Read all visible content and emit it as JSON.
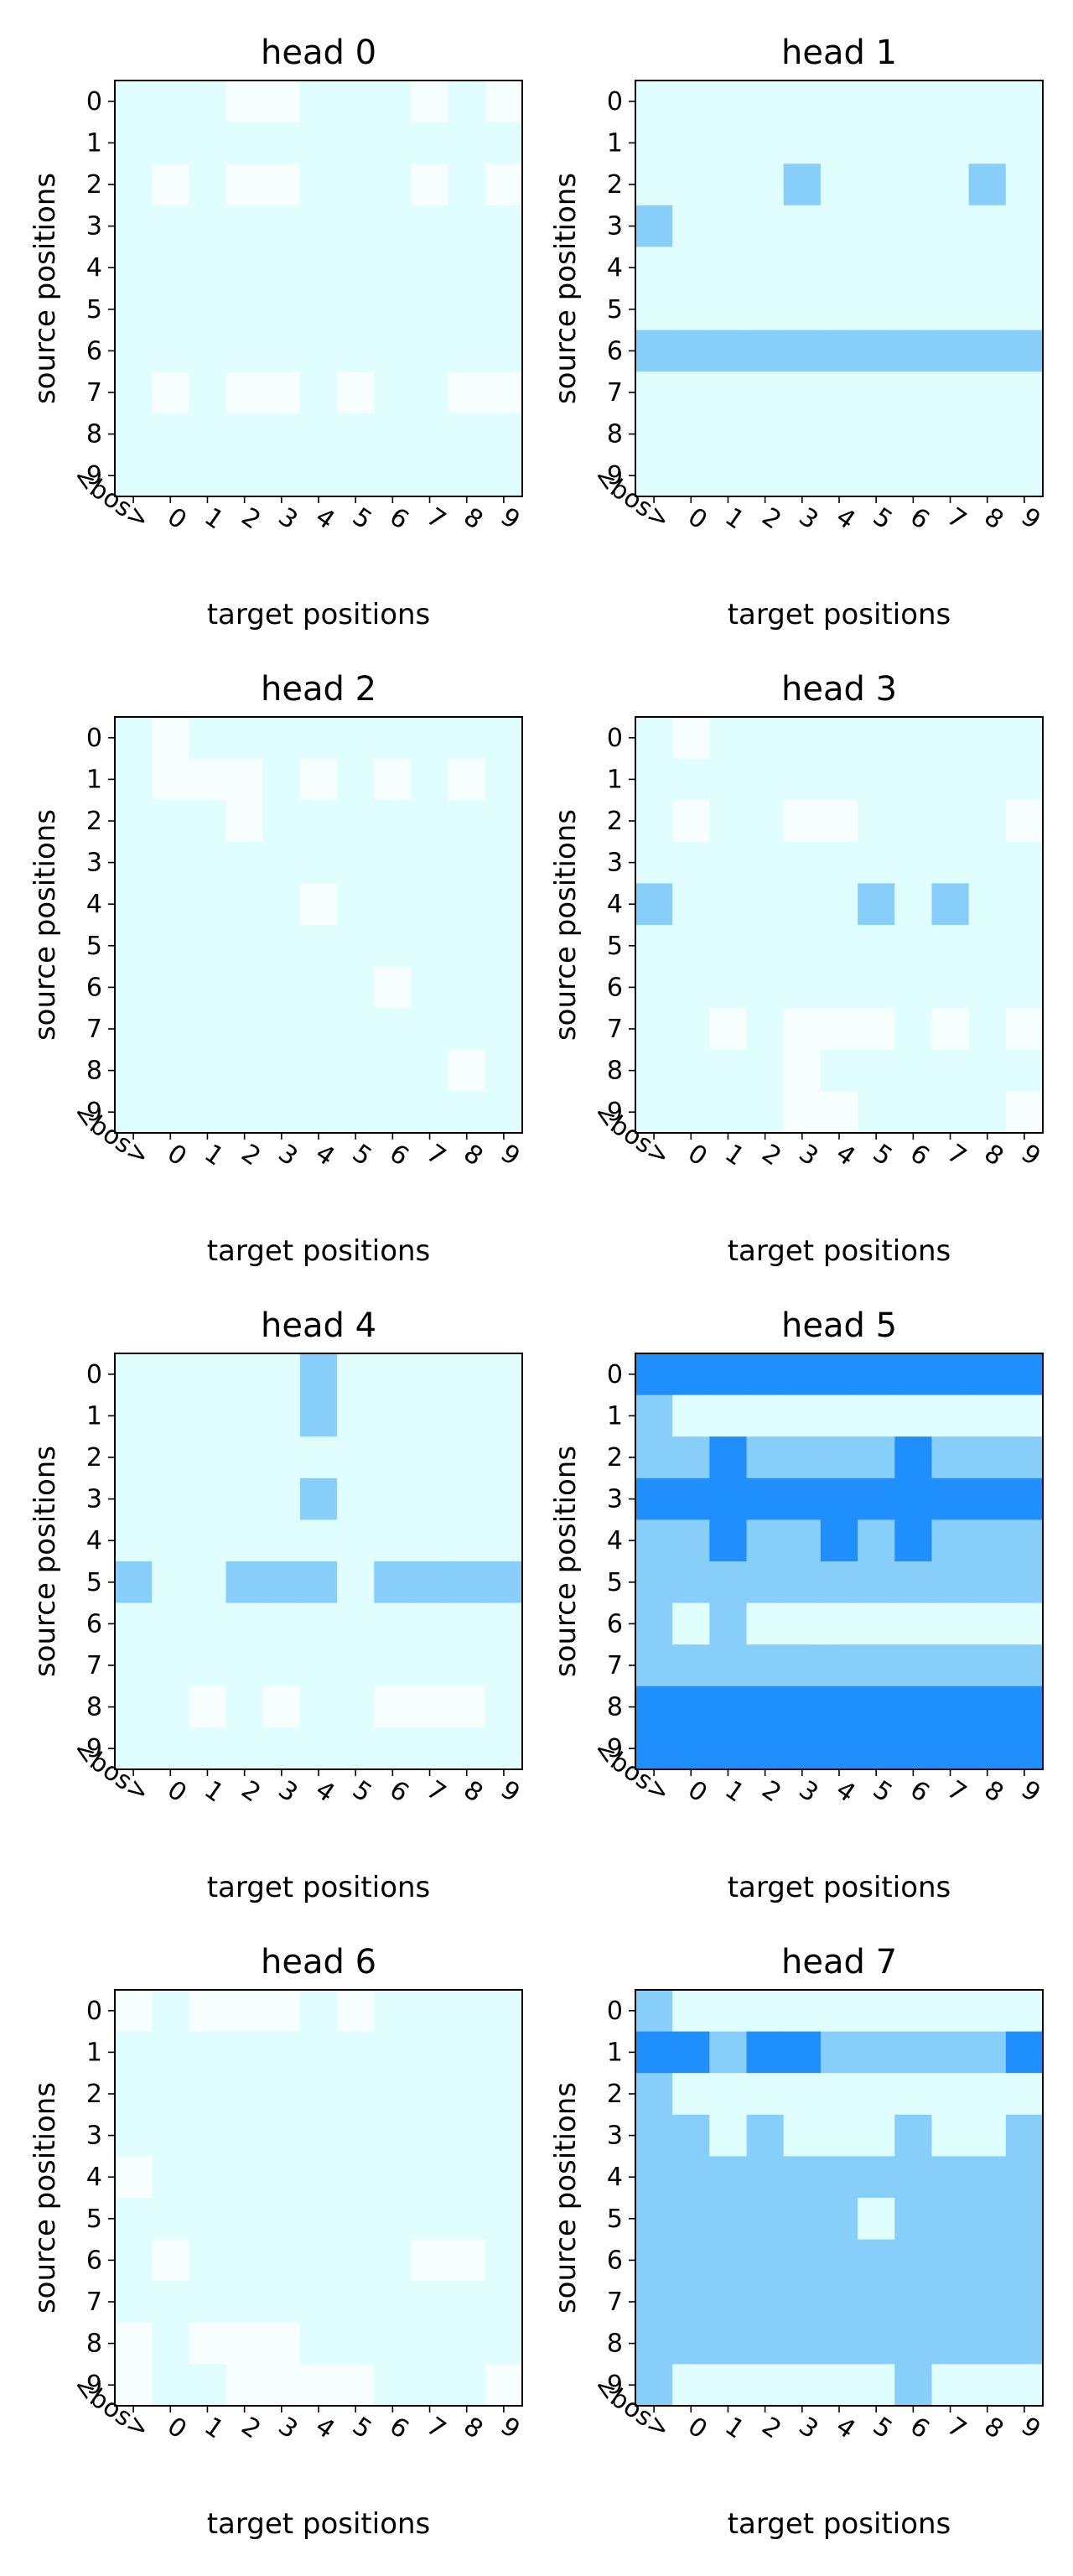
{
  "figure": {
    "background": "#ffffff",
    "levels": {
      "0": "#f6fefe",
      "1": "#e0fefe",
      "2": "#87cefa",
      "3": "#1f8ffe"
    }
  },
  "chart_data": [
    {
      "type": "heatmap",
      "title": "head 0",
      "xlabel": "target positions",
      "ylabel": "source positions",
      "x_ticks": [
        "<bos>",
        "0",
        "1",
        "2",
        "3",
        "4",
        "5",
        "6",
        "7",
        "8",
        "9"
      ],
      "y_ticks": [
        "0",
        "1",
        "2",
        "3",
        "4",
        "5",
        "6",
        "7",
        "8",
        "9"
      ],
      "grid": false,
      "values": [
        [
          1,
          1,
          1,
          0,
          0,
          1,
          1,
          1,
          0,
          1,
          0
        ],
        [
          1,
          1,
          1,
          1,
          1,
          1,
          1,
          1,
          1,
          1,
          1
        ],
        [
          1,
          0,
          1,
          0,
          0,
          1,
          1,
          1,
          0,
          1,
          0
        ],
        [
          1,
          1,
          1,
          1,
          1,
          1,
          1,
          1,
          1,
          1,
          1
        ],
        [
          1,
          1,
          1,
          1,
          1,
          1,
          1,
          1,
          1,
          1,
          1
        ],
        [
          1,
          1,
          1,
          1,
          1,
          1,
          1,
          1,
          1,
          1,
          1
        ],
        [
          1,
          1,
          1,
          1,
          1,
          1,
          1,
          1,
          1,
          1,
          1
        ],
        [
          1,
          0,
          1,
          0,
          0,
          1,
          0,
          1,
          1,
          0,
          0
        ],
        [
          1,
          1,
          1,
          1,
          1,
          1,
          1,
          1,
          1,
          1,
          1
        ],
        [
          1,
          1,
          1,
          1,
          1,
          1,
          1,
          1,
          1,
          1,
          1
        ]
      ]
    },
    {
      "type": "heatmap",
      "title": "head 1",
      "xlabel": "target positions",
      "ylabel": "source positions",
      "x_ticks": [
        "<bos>",
        "0",
        "1",
        "2",
        "3",
        "4",
        "5",
        "6",
        "7",
        "8",
        "9"
      ],
      "y_ticks": [
        "0",
        "1",
        "2",
        "3",
        "4",
        "5",
        "6",
        "7",
        "8",
        "9"
      ],
      "grid": false,
      "values": [
        [
          1,
          1,
          1,
          1,
          1,
          1,
          1,
          1,
          1,
          1,
          1
        ],
        [
          1,
          1,
          1,
          1,
          1,
          1,
          1,
          1,
          1,
          1,
          1
        ],
        [
          1,
          1,
          1,
          1,
          2,
          1,
          1,
          1,
          1,
          2,
          1
        ],
        [
          2,
          1,
          1,
          1,
          1,
          1,
          1,
          1,
          1,
          1,
          1
        ],
        [
          1,
          1,
          1,
          1,
          1,
          1,
          1,
          1,
          1,
          1,
          1
        ],
        [
          1,
          1,
          1,
          1,
          1,
          1,
          1,
          1,
          1,
          1,
          1
        ],
        [
          2,
          2,
          2,
          2,
          2,
          2,
          2,
          2,
          2,
          2,
          2
        ],
        [
          1,
          1,
          1,
          1,
          1,
          1,
          1,
          1,
          1,
          1,
          1
        ],
        [
          1,
          1,
          1,
          1,
          1,
          1,
          1,
          1,
          1,
          1,
          1
        ],
        [
          1,
          1,
          1,
          1,
          1,
          1,
          1,
          1,
          1,
          1,
          1
        ]
      ]
    },
    {
      "type": "heatmap",
      "title": "head 2",
      "xlabel": "target positions",
      "ylabel": "source positions",
      "x_ticks": [
        "<bos>",
        "0",
        "1",
        "2",
        "3",
        "4",
        "5",
        "6",
        "7",
        "8",
        "9"
      ],
      "y_ticks": [
        "0",
        "1",
        "2",
        "3",
        "4",
        "5",
        "6",
        "7",
        "8",
        "9"
      ],
      "grid": false,
      "values": [
        [
          1,
          0,
          1,
          1,
          1,
          1,
          1,
          1,
          1,
          1,
          1
        ],
        [
          1,
          0,
          0,
          0,
          1,
          0,
          1,
          0,
          1,
          0,
          1
        ],
        [
          1,
          1,
          1,
          0,
          1,
          1,
          1,
          1,
          1,
          1,
          1
        ],
        [
          1,
          1,
          1,
          1,
          1,
          1,
          1,
          1,
          1,
          1,
          1
        ],
        [
          1,
          1,
          1,
          1,
          1,
          0,
          1,
          1,
          1,
          1,
          1
        ],
        [
          1,
          1,
          1,
          1,
          1,
          1,
          1,
          1,
          1,
          1,
          1
        ],
        [
          1,
          1,
          1,
          1,
          1,
          1,
          1,
          0,
          1,
          1,
          1
        ],
        [
          1,
          1,
          1,
          1,
          1,
          1,
          1,
          1,
          1,
          1,
          1
        ],
        [
          1,
          1,
          1,
          1,
          1,
          1,
          1,
          1,
          1,
          0,
          1
        ],
        [
          1,
          1,
          1,
          1,
          1,
          1,
          1,
          1,
          1,
          1,
          1
        ]
      ]
    },
    {
      "type": "heatmap",
      "title": "head 3",
      "xlabel": "target positions",
      "ylabel": "source positions",
      "x_ticks": [
        "<bos>",
        "0",
        "1",
        "2",
        "3",
        "4",
        "5",
        "6",
        "7",
        "8",
        "9"
      ],
      "y_ticks": [
        "0",
        "1",
        "2",
        "3",
        "4",
        "5",
        "6",
        "7",
        "8",
        "9"
      ],
      "grid": false,
      "values": [
        [
          1,
          0,
          1,
          1,
          1,
          1,
          1,
          1,
          1,
          1,
          1
        ],
        [
          1,
          1,
          1,
          1,
          1,
          1,
          1,
          1,
          1,
          1,
          1
        ],
        [
          1,
          0,
          1,
          1,
          0,
          0,
          1,
          1,
          1,
          1,
          0
        ],
        [
          1,
          1,
          1,
          1,
          1,
          1,
          1,
          1,
          1,
          1,
          1
        ],
        [
          2,
          1,
          1,
          1,
          1,
          1,
          2,
          1,
          2,
          1,
          1
        ],
        [
          1,
          1,
          1,
          1,
          1,
          1,
          1,
          1,
          1,
          1,
          1
        ],
        [
          1,
          1,
          1,
          1,
          1,
          1,
          1,
          1,
          1,
          1,
          1
        ],
        [
          1,
          1,
          0,
          1,
          0,
          0,
          0,
          1,
          0,
          1,
          0
        ],
        [
          1,
          1,
          1,
          1,
          0,
          1,
          1,
          1,
          1,
          1,
          1
        ],
        [
          1,
          1,
          1,
          1,
          0,
          0,
          1,
          1,
          1,
          1,
          0
        ]
      ]
    },
    {
      "type": "heatmap",
      "title": "head 4",
      "xlabel": "target positions",
      "ylabel": "source positions",
      "x_ticks": [
        "<bos>",
        "0",
        "1",
        "2",
        "3",
        "4",
        "5",
        "6",
        "7",
        "8",
        "9"
      ],
      "y_ticks": [
        "0",
        "1",
        "2",
        "3",
        "4",
        "5",
        "6",
        "7",
        "8",
        "9"
      ],
      "grid": false,
      "values": [
        [
          1,
          1,
          1,
          1,
          1,
          2,
          1,
          1,
          1,
          1,
          1
        ],
        [
          1,
          1,
          1,
          1,
          1,
          2,
          1,
          1,
          1,
          1,
          1
        ],
        [
          1,
          1,
          1,
          1,
          1,
          1,
          1,
          1,
          1,
          1,
          1
        ],
        [
          1,
          1,
          1,
          1,
          1,
          2,
          1,
          1,
          1,
          1,
          1
        ],
        [
          1,
          1,
          1,
          1,
          1,
          1,
          1,
          1,
          1,
          1,
          1
        ],
        [
          2,
          1,
          1,
          2,
          2,
          2,
          1,
          2,
          2,
          2,
          2
        ],
        [
          1,
          1,
          1,
          1,
          1,
          1,
          1,
          1,
          1,
          1,
          1
        ],
        [
          1,
          1,
          1,
          1,
          1,
          1,
          1,
          1,
          1,
          1,
          1
        ],
        [
          1,
          1,
          0,
          1,
          0,
          1,
          1,
          0,
          0,
          0,
          1
        ],
        [
          1,
          1,
          1,
          1,
          1,
          1,
          1,
          1,
          1,
          1,
          1
        ]
      ]
    },
    {
      "type": "heatmap",
      "title": "head 5",
      "xlabel": "target positions",
      "ylabel": "source positions",
      "x_ticks": [
        "<bos>",
        "0",
        "1",
        "2",
        "3",
        "4",
        "5",
        "6",
        "7",
        "8",
        "9"
      ],
      "y_ticks": [
        "0",
        "1",
        "2",
        "3",
        "4",
        "5",
        "6",
        "7",
        "8",
        "9"
      ],
      "grid": false,
      "values": [
        [
          3,
          3,
          3,
          3,
          3,
          3,
          3,
          3,
          3,
          3,
          3
        ],
        [
          2,
          1,
          1,
          1,
          1,
          1,
          1,
          1,
          1,
          1,
          1
        ],
        [
          2,
          2,
          3,
          2,
          2,
          2,
          2,
          3,
          2,
          2,
          2
        ],
        [
          3,
          3,
          3,
          3,
          3,
          3,
          3,
          3,
          3,
          3,
          3
        ],
        [
          2,
          2,
          3,
          2,
          2,
          3,
          2,
          3,
          2,
          2,
          2
        ],
        [
          2,
          2,
          2,
          2,
          2,
          2,
          2,
          2,
          2,
          2,
          2
        ],
        [
          2,
          1,
          2,
          1,
          1,
          1,
          1,
          1,
          1,
          1,
          1
        ],
        [
          2,
          2,
          2,
          2,
          2,
          2,
          2,
          2,
          2,
          2,
          2
        ],
        [
          3,
          3,
          3,
          3,
          3,
          3,
          3,
          3,
          3,
          3,
          3
        ],
        [
          3,
          3,
          3,
          3,
          3,
          3,
          3,
          3,
          3,
          3,
          3
        ]
      ]
    },
    {
      "type": "heatmap",
      "title": "head 6",
      "xlabel": "target positions",
      "ylabel": "source positions",
      "x_ticks": [
        "<bos>",
        "0",
        "1",
        "2",
        "3",
        "4",
        "5",
        "6",
        "7",
        "8",
        "9"
      ],
      "y_ticks": [
        "0",
        "1",
        "2",
        "3",
        "4",
        "5",
        "6",
        "7",
        "8",
        "9"
      ],
      "grid": false,
      "values": [
        [
          0,
          1,
          0,
          0,
          0,
          1,
          0,
          1,
          1,
          1,
          1
        ],
        [
          1,
          1,
          1,
          1,
          1,
          1,
          1,
          1,
          1,
          1,
          1
        ],
        [
          1,
          1,
          1,
          1,
          1,
          1,
          1,
          1,
          1,
          1,
          1
        ],
        [
          1,
          1,
          1,
          1,
          1,
          1,
          1,
          1,
          1,
          1,
          1
        ],
        [
          0,
          1,
          1,
          1,
          1,
          1,
          1,
          1,
          1,
          1,
          1
        ],
        [
          1,
          1,
          1,
          1,
          1,
          1,
          1,
          1,
          1,
          1,
          1
        ],
        [
          1,
          0,
          1,
          1,
          1,
          1,
          1,
          1,
          0,
          0,
          1
        ],
        [
          1,
          1,
          1,
          1,
          1,
          1,
          1,
          1,
          1,
          1,
          1
        ],
        [
          0,
          1,
          0,
          0,
          0,
          1,
          1,
          1,
          1,
          1,
          1
        ],
        [
          0,
          1,
          1,
          0,
          0,
          0,
          0,
          1,
          1,
          1,
          0
        ]
      ]
    },
    {
      "type": "heatmap",
      "title": "head 7",
      "xlabel": "target positions",
      "ylabel": "source positions",
      "x_ticks": [
        "<bos>",
        "0",
        "1",
        "2",
        "3",
        "4",
        "5",
        "6",
        "7",
        "8",
        "9"
      ],
      "y_ticks": [
        "0",
        "1",
        "2",
        "3",
        "4",
        "5",
        "6",
        "7",
        "8",
        "9"
      ],
      "grid": false,
      "values": [
        [
          2,
          1,
          1,
          1,
          1,
          1,
          1,
          1,
          1,
          1,
          1
        ],
        [
          3,
          3,
          2,
          3,
          3,
          2,
          2,
          2,
          2,
          2,
          3
        ],
        [
          2,
          1,
          1,
          1,
          1,
          1,
          1,
          1,
          1,
          1,
          1
        ],
        [
          2,
          2,
          1,
          2,
          1,
          1,
          1,
          2,
          1,
          1,
          2
        ],
        [
          2,
          2,
          2,
          2,
          2,
          2,
          2,
          2,
          2,
          2,
          2
        ],
        [
          2,
          2,
          2,
          2,
          2,
          2,
          1,
          2,
          2,
          2,
          2
        ],
        [
          2,
          2,
          2,
          2,
          2,
          2,
          2,
          2,
          2,
          2,
          2
        ],
        [
          2,
          2,
          2,
          2,
          2,
          2,
          2,
          2,
          2,
          2,
          2
        ],
        [
          2,
          2,
          2,
          2,
          2,
          2,
          2,
          2,
          2,
          2,
          2
        ],
        [
          2,
          1,
          1,
          1,
          1,
          1,
          1,
          2,
          1,
          1,
          1
        ]
      ]
    }
  ]
}
